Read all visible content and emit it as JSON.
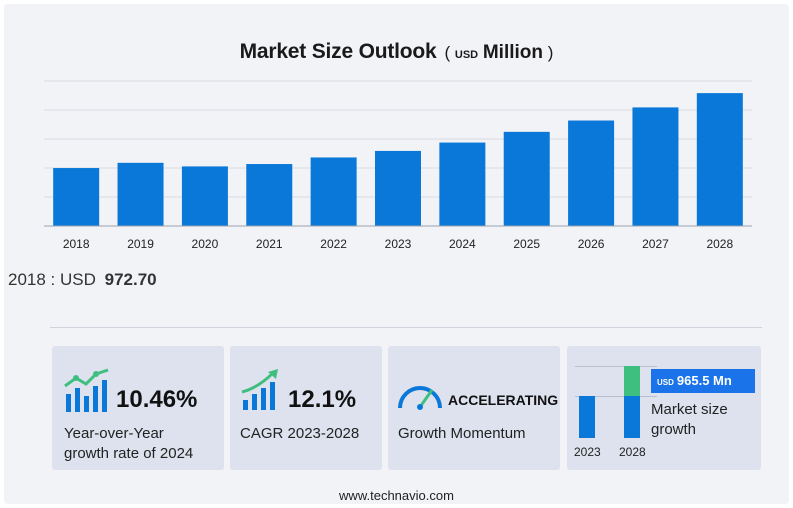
{
  "chart_data": {
    "type": "bar",
    "title": "Market Size Outlook",
    "unit_prefix": "USD",
    "unit": "Million",
    "categories": [
      "2018",
      "2019",
      "2020",
      "2021",
      "2022",
      "2023",
      "2024",
      "2025",
      "2026",
      "2027",
      "2028"
    ],
    "values": [
      972.7,
      1060,
      1000,
      1040,
      1150,
      1260,
      1400,
      1580,
      1770,
      1990,
      2230
    ],
    "ylim": [
      0,
      2450
    ],
    "grid": true,
    "bar_color": "#0a78d8"
  },
  "baseline": {
    "label": "2018 : USD",
    "value": "972.70"
  },
  "stats": {
    "yoy": {
      "value": "10.46%",
      "label_line1": "Year-over-Year",
      "label_line2": "growth rate of 2024"
    },
    "cagr": {
      "value": "12.1%",
      "label": "CAGR 2023-2028"
    },
    "momentum": {
      "value": "ACCELERATING",
      "label": "Growth Momentum"
    },
    "growth": {
      "badge_prefix": "USD",
      "badge_value": "965.5 Mn",
      "label_line1": "Market size",
      "label_line2": "growth",
      "year_start": "2023",
      "year_end": "2028"
    }
  },
  "colors": {
    "accent_blue": "#0a78d8",
    "accent_green": "#3fbf7f",
    "panel_bg": "#dde2ee"
  },
  "footer": "www.technavio.com"
}
